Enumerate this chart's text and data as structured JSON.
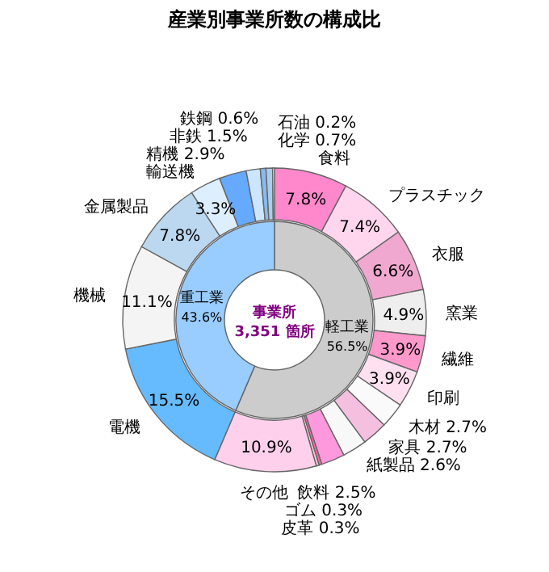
{
  "chart_data": [
    {
      "type": "donut",
      "title": "産業別事業所数の構成比",
      "categories": [
        "食料",
        "プラスチック",
        "衣服",
        "窯業",
        "繊維",
        "印刷",
        "木材",
        "家具",
        "紙製品",
        "飲料",
        "ゴム",
        "皮革",
        "その他",
        "電機",
        "機械",
        "金属製品",
        "輸送機",
        "精機",
        "非鉄",
        "鉄鋼",
        "化学",
        "石油"
      ],
      "values": [
        7.8,
        7.4,
        6.6,
        4.9,
        3.9,
        3.9,
        2.7,
        2.7,
        2.6,
        2.5,
        0.3,
        0.3,
        10.9,
        15.5,
        11.1,
        7.8,
        3.3,
        2.9,
        1.5,
        0.6,
        0.7,
        0.2
      ],
      "value_labels": [
        "7.8%",
        "7.4%",
        "6.6%",
        "4.9%",
        "3.9%",
        "3.9%",
        "2.7%",
        "2.7%",
        "2.6%",
        "2.5%",
        "0.3%",
        "0.3%",
        "10.9%",
        "15.5%",
        "11.1%",
        "7.8%",
        "3.3%",
        "2.9%",
        "1.5%",
        "0.6%",
        "0.7%",
        "0.2%"
      ],
      "colors": [
        "#ff88cc",
        "#ffd6ee",
        "#f0a8d0",
        "#eeeeee",
        "#ff99cc",
        "#ffe0f0",
        "#fafafa",
        "#f5c0e0",
        "#f8f8f8",
        "#ff99dd",
        "#ff66aa",
        "#ffccdd",
        "#ffd0ec",
        "#66bbff",
        "#f4f4f4",
        "#bbd8f0",
        "#ddeeff",
        "#66aaff",
        "#cce6ff",
        "#88bbee",
        "#aaccee",
        "#fcfcfc"
      ]
    },
    {
      "type": "donut",
      "categories": [
        "軽工業",
        "重工業"
      ],
      "values": [
        56.5,
        43.6
      ],
      "value_labels": [
        "56.5%",
        "43.6%"
      ],
      "colors": [
        "#cccccc",
        "#99ccff"
      ],
      "annotations": [
        "事業所",
        "3,351 箇所"
      ]
    }
  ]
}
